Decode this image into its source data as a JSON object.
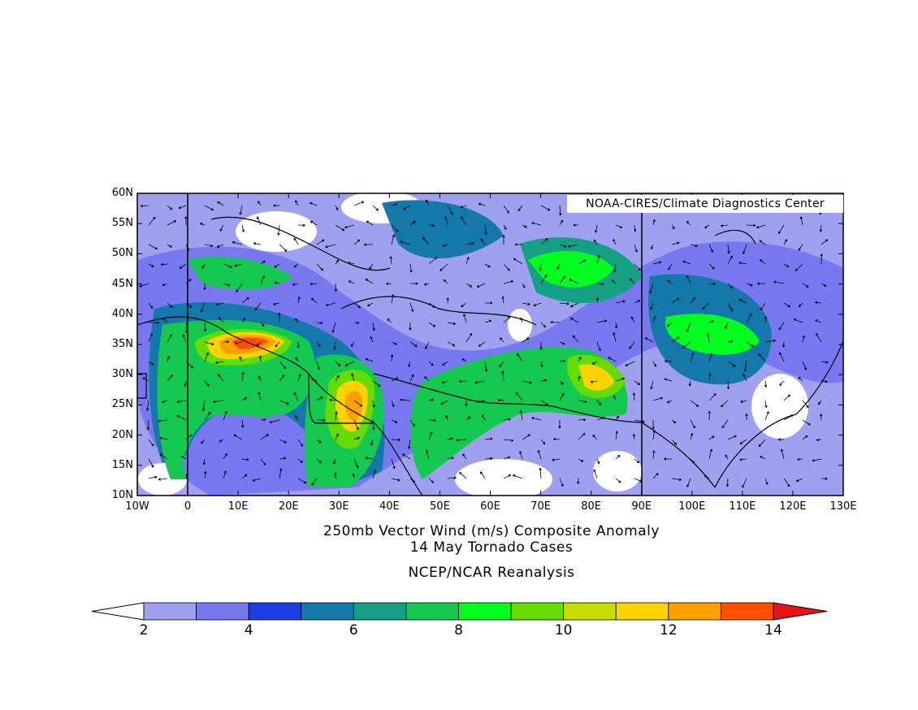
{
  "credit": "NOAA-CIRES/Climate Diagnostics Center",
  "title_line1": "250mb Vector Wind (m/s) Composite Anomaly",
  "title_line2": "14 May Tornado Cases",
  "title_line3": "NCEP/NCAR Reanalysis",
  "lat_ticks": [
    "60N",
    "55N",
    "50N",
    "45N",
    "40N",
    "35N",
    "30N",
    "25N",
    "20N",
    "15N",
    "10N"
  ],
  "lon_ticks": [
    "10W",
    "0",
    "10E",
    "20E",
    "30E",
    "40E",
    "50E",
    "60E",
    "70E",
    "80E",
    "90E",
    "100E",
    "110E",
    "120E",
    "130E"
  ],
  "colorbar": {
    "colors": [
      "#a0a0f0",
      "#7878f0",
      "#1e3ce6",
      "#1478aa",
      "#14a082",
      "#14c850",
      "#00ff1e",
      "#64dc00",
      "#c8dc00",
      "#ffd200",
      "#ffa000",
      "#ff5000"
    ],
    "over_color": "#e61414",
    "under_color": "#ffffff",
    "labels": [
      "2",
      "4",
      "6",
      "8",
      "10",
      "12",
      "14"
    ]
  }
}
